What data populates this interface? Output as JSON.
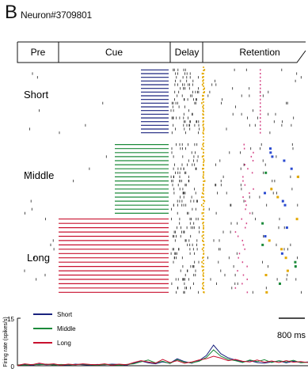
{
  "panel_label": "B",
  "neuron_id": "Neuron#3709801",
  "epochs": [
    "Pre",
    "Cue",
    "Delay",
    "Retention"
  ],
  "conditions": [
    {
      "label": "Short",
      "color": "#1a237e"
    },
    {
      "label": "Middle",
      "color": "#1b8a3a"
    },
    {
      "label": "Long",
      "color": "#c8102e"
    }
  ],
  "scale_bar_label": "800 ms",
  "colors": {
    "cue_short": "#1a237e",
    "cue_middle": "#1b8a3a",
    "cue_long": "#c8102e",
    "delay_marker": "#e3a800",
    "retention_marker_pink": "#d64a8a",
    "retention_marker_green": "#1b8a3a",
    "retention_marker_blue": "#2a4ad0",
    "retention_marker_yellow": "#e3a800",
    "spike": "#222222"
  },
  "chart_data": {
    "type": "line",
    "title": "",
    "xlabel": "",
    "ylabel": "Firing rate (spikes/s)",
    "ylim": [
      0,
      15
    ],
    "yticks": [
      0,
      15
    ],
    "x": [
      0,
      1,
      2,
      3,
      4,
      5,
      6,
      7,
      8,
      9,
      10,
      11,
      12,
      13,
      14,
      15,
      16,
      17,
      18,
      19,
      20,
      21,
      22,
      23,
      24,
      25,
      26,
      27,
      28,
      29,
      30,
      31,
      32,
      33,
      34,
      35,
      36,
      37,
      38,
      39,
      40
    ],
    "series": [
      {
        "name": "Short",
        "values": [
          0.2,
          0.4,
          0.2,
          0.5,
          0.3,
          0.4,
          0.3,
          0.2,
          0.5,
          0.3,
          0.2,
          0.4,
          0.3,
          0.5,
          0.4,
          0.2,
          0.8,
          1.5,
          0.9,
          0.6,
          1.2,
          0.8,
          2.2,
          1.3,
          0.8,
          1.6,
          3.2,
          6.5,
          3.8,
          2.5,
          1.8,
          1.2,
          1.6,
          1.0,
          0.8,
          1.2,
          1.5,
          0.9,
          1.4,
          1.0,
          1.2
        ]
      },
      {
        "name": "Middle",
        "values": [
          0.3,
          0.2,
          0.4,
          0.3,
          0.5,
          0.2,
          0.4,
          0.3,
          0.3,
          0.5,
          0.3,
          0.2,
          0.4,
          0.3,
          0.2,
          0.4,
          0.6,
          1.2,
          1.8,
          0.9,
          1.4,
          0.7,
          1.9,
          1.1,
          0.9,
          1.4,
          2.6,
          5.0,
          3.0,
          2.0,
          1.6,
          1.0,
          1.8,
          1.3,
          1.9,
          1.0,
          1.6,
          1.2,
          1.7,
          0.9,
          1.1
        ]
      },
      {
        "name": "Long",
        "values": [
          0.1,
          0.6,
          0.3,
          0.8,
          0.4,
          0.6,
          0.2,
          0.5,
          0.3,
          0.6,
          0.4,
          0.3,
          0.6,
          0.2,
          0.5,
          0.3,
          1.0,
          1.6,
          1.2,
          0.8,
          2.0,
          1.0,
          1.6,
          0.8,
          1.2,
          1.8,
          2.2,
          3.0,
          2.4,
          1.6,
          2.0,
          1.4,
          1.2,
          1.8,
          1.1,
          1.5,
          1.0,
          1.6,
          1.1,
          1.3,
          1.0
        ]
      }
    ],
    "legend": "top-left",
    "grid": false
  }
}
